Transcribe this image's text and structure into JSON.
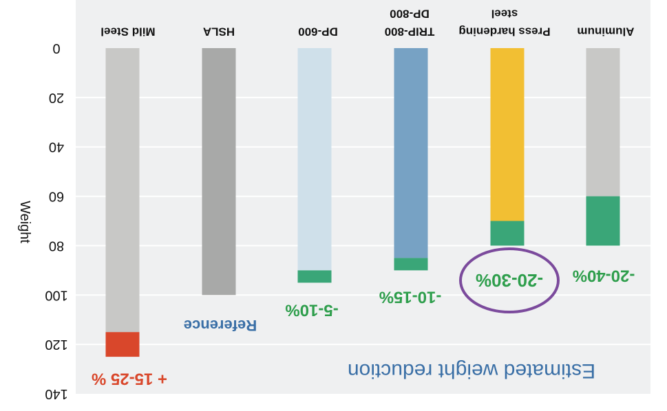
{
  "chart_data": {
    "type": "bar",
    "orientation": "vertical",
    "y_axis_inverted": true,
    "ylabel": "Weight",
    "ylim": [
      0,
      140
    ],
    "yticks": [
      "0",
      "20",
      "40",
      "60",
      "80",
      "100",
      "120",
      "140"
    ],
    "ytick_values": [
      0,
      20,
      40,
      60,
      80,
      100,
      120,
      140
    ],
    "categories": [
      {
        "lines": [
          "Mild Steel"
        ]
      },
      {
        "lines": [
          "HSLA"
        ]
      },
      {
        "lines": [
          "DP-600"
        ]
      },
      {
        "lines": [
          "DP-800",
          "TRIP-800"
        ]
      },
      {
        "lines": [
          "steel",
          "Press hardening"
        ]
      },
      {
        "lines": [
          "Aluminum"
        ]
      }
    ],
    "bars": [
      {
        "base": 115,
        "change": 10,
        "base_color": "#c8c8c6",
        "change_color": "#d9472b",
        "annotation": "+ 15-25 %",
        "annotation_color": "#d9472b"
      },
      {
        "base": 100,
        "change": 0,
        "base_color": "#a8a9a8",
        "change_color": "#a8a9a8",
        "annotation": "",
        "annotation_color": "#3a6fa6"
      },
      {
        "base": 90,
        "change": 5,
        "base_color": "#cfe0ea",
        "change_color": "#3aa678",
        "annotation": "-5-10%",
        "annotation_color": "#2e9e4c"
      },
      {
        "base": 85,
        "change": 5,
        "base_color": "#77a2c4",
        "change_color": "#3aa678",
        "annotation": "-10-15%",
        "annotation_color": "#2e9e4c"
      },
      {
        "base": 70,
        "change": 10,
        "base_color": "#f2bf33",
        "change_color": "#3aa678",
        "annotation": "-20-30%",
        "annotation_color": "#2e9e4c"
      },
      {
        "base": 60,
        "change": 20,
        "base_color": "#c8c8c6",
        "change_color": "#3aa678",
        "annotation": "-20-40%",
        "annotation_color": "#2e9e4c"
      }
    ],
    "reference_label": "Reference",
    "reference_color": "#3a6fa6",
    "subtitle": "Estimated weight reduction",
    "subtitle_color": "#3a6fa6",
    "highlight_color": "#7b4a9c",
    "grid": true,
    "plot_background": "#eff0f1"
  }
}
